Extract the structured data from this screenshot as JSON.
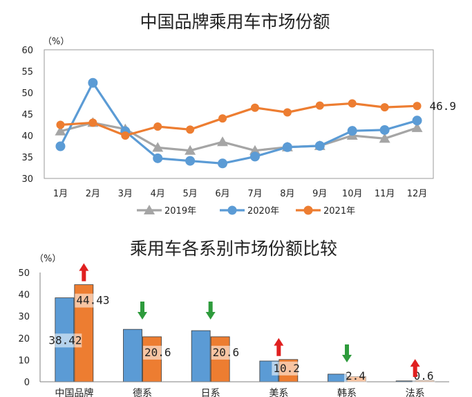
{
  "chart_data": [
    {
      "type": "line",
      "title": "中国品牌乘用车市场份额",
      "unit": "（%）",
      "x": [
        "1月",
        "2月",
        "3月",
        "4月",
        "5月",
        "6月",
        "7月",
        "8月",
        "9月",
        "10月",
        "11月",
        "12月"
      ],
      "ylim": [
        30,
        60
      ],
      "yticks": [
        "30",
        "35",
        "40",
        "45",
        "50",
        "55",
        "60"
      ],
      "legend_position": "bottom",
      "series": [
        {
          "name": "2019年",
          "color": "#A5A5A5",
          "marker": "triangle",
          "values": [
            41.0,
            43.0,
            41.5,
            37.2,
            36.5,
            38.5,
            36.5,
            37.3,
            37.6,
            40.0,
            39.3,
            41.8
          ]
        },
        {
          "name": "2020年",
          "color": "#5B9BD5",
          "marker": "circle",
          "values": [
            37.5,
            52.3,
            41.0,
            34.7,
            34.1,
            33.5,
            35.1,
            37.3,
            37.6,
            41.1,
            41.3,
            43.5
          ]
        },
        {
          "name": "2021年",
          "color": "#ED7D31",
          "marker": "circle",
          "values": [
            42.5,
            43.0,
            40.0,
            42.1,
            41.4,
            44.0,
            46.5,
            45.4,
            47.0,
            47.5,
            46.6,
            46.9
          ]
        }
      ],
      "annotations": [
        {
          "series": "2021年",
          "index": 11,
          "text": "46.9"
        }
      ]
    },
    {
      "type": "bar",
      "title": "乘用车各系别市场份额比较",
      "unit": "（%）",
      "categories": [
        "中国品牌",
        "德系",
        "日系",
        "美系",
        "韩系",
        "法系"
      ],
      "ylim": [
        0,
        50
      ],
      "yticks": [
        "0",
        "10",
        "20",
        "30",
        "40",
        "50"
      ],
      "series": [
        {
          "color": "#5B9BD5",
          "values": [
            38.42,
            24.0,
            23.4,
            9.5,
            3.5,
            0.4
          ]
        },
        {
          "color": "#ED7D31",
          "values": [
            44.43,
            20.6,
            20.6,
            10.2,
            2.4,
            0.6
          ]
        }
      ],
      "labels": [
        {
          "category": "中国品牌",
          "series": 0,
          "text": "38.42"
        },
        {
          "category": "中国品牌",
          "series": 1,
          "text": "44.43"
        },
        {
          "category": "德系",
          "series": 1,
          "text": "20.6"
        },
        {
          "category": "日系",
          "series": 1,
          "text": "20.6"
        },
        {
          "category": "美系",
          "series": 1,
          "text": "10.2"
        },
        {
          "category": "韩系",
          "series": 1,
          "text": "2.4"
        },
        {
          "category": "法系",
          "series": 1,
          "text": "0.6"
        }
      ],
      "trend_arrows": [
        {
          "category": "中国品牌",
          "direction": "up",
          "color": "#E02020"
        },
        {
          "category": "德系",
          "direction": "down",
          "color": "#2E9B3C"
        },
        {
          "category": "日系",
          "direction": "down",
          "color": "#2E9B3C"
        },
        {
          "category": "美系",
          "direction": "up",
          "color": "#E02020"
        },
        {
          "category": "韩系",
          "direction": "down",
          "color": "#2E9B3C"
        },
        {
          "category": "法系",
          "direction": "up",
          "color": "#E02020"
        }
      ]
    }
  ]
}
